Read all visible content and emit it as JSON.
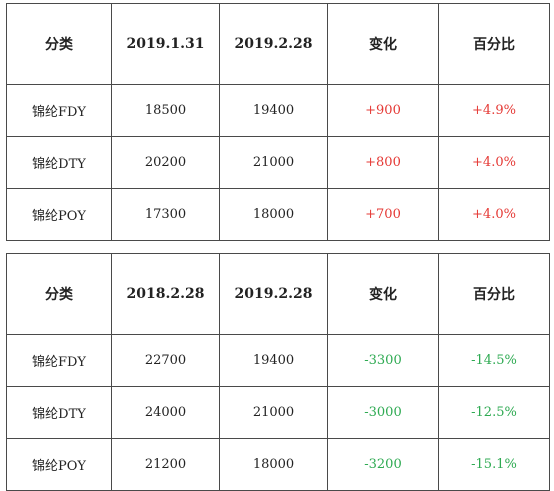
{
  "tables": [
    {
      "headers": [
        "分类",
        "2019.1.31",
        "2019.2.28",
        "变化",
        "百分比"
      ],
      "rows": [
        {
          "category": "锦纶FDY",
          "prev": "18500",
          "curr": "19400",
          "change": "+900",
          "pct": "+4.9%",
          "trend": "up"
        },
        {
          "category": "锦纶DTY",
          "prev": "20200",
          "curr": "21000",
          "change": "+800",
          "pct": "+4.0%",
          "trend": "up"
        },
        {
          "category": "锦纶POY",
          "prev": "17300",
          "curr": "18000",
          "change": "+700",
          "pct": "+4.0%",
          "trend": "up"
        }
      ]
    },
    {
      "headers": [
        "分类",
        "2018.2.28",
        "2019.2.28",
        "变化",
        "百分比"
      ],
      "rows": [
        {
          "category": "锦纶FDY",
          "prev": "22700",
          "curr": "19400",
          "change": "-3300",
          "pct": "-14.5%",
          "trend": "down"
        },
        {
          "category": "锦纶DTY",
          "prev": "24000",
          "curr": "21000",
          "change": "-3000",
          "pct": "-12.5%",
          "trend": "down"
        },
        {
          "category": "锦纶POY",
          "prev": "21200",
          "curr": "18000",
          "change": "-3200",
          "pct": "-15.1%",
          "trend": "down"
        }
      ]
    }
  ],
  "colors": {
    "up": "#e53935",
    "down": "#2eaa52",
    "border": "#4a4a4a"
  }
}
